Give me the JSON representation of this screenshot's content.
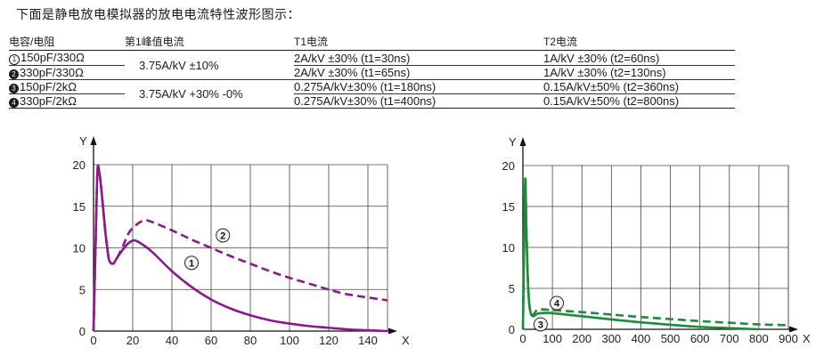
{
  "heading": "下面是静电放电模拟器的放电电流特性波形图示：",
  "table": {
    "headers": [
      "电容/电阻",
      "第1峰值电流",
      "T1电流",
      "T2电流"
    ],
    "rows": [
      {
        "badge": "1",
        "rc": "150pF/330Ω",
        "t1": "2A/kV ±30% (t1=30ns)",
        "t2": "1A/kV ±30% (t2=60ns)"
      },
      {
        "badge": "2",
        "rc": "330pF/330Ω",
        "t1": "2A/kV ±30% (t1=65ns)",
        "t2": "1A/kV ±30% (t2=130ns)"
      },
      {
        "badge": "3",
        "rc": "150pF/2kΩ",
        "t1": "0.275A/kV±30% (t1=180ns)",
        "t2": "0.15A/kV±50% (t2=360ns)"
      },
      {
        "badge": "4",
        "rc": "330pF/2kΩ",
        "t1": "0.275A/kV±30% (t1=400ns)",
        "t2": "0.15A/kV±50% (t2=800ns)"
      }
    ],
    "peak_a": "3.75A/kV ±10%",
    "peak_b": "3.75A/kV +30% -0%"
  },
  "chart_data": [
    {
      "type": "line",
      "xlabel": "X",
      "ylabel": "Y",
      "xlim": [
        0,
        150
      ],
      "ylim": [
        0,
        20
      ],
      "xticks": [
        0,
        20,
        40,
        60,
        80,
        100,
        120,
        140
      ],
      "yticks": [
        0,
        5,
        10,
        15,
        20
      ],
      "grid": true,
      "series": [
        {
          "name": "1",
          "color": "#8a1a8a",
          "dash": false,
          "label_at": [
            50,
            8.2
          ],
          "x": [
            0,
            1,
            2,
            3,
            4,
            5,
            6,
            7,
            8,
            10,
            12,
            15,
            18,
            21,
            25,
            30,
            40,
            50,
            60,
            70,
            80,
            90,
            100,
            110,
            120,
            130,
            140,
            150
          ],
          "y": [
            0,
            10,
            19.2,
            19,
            17,
            14.5,
            12,
            10,
            8.5,
            8.1,
            8.8,
            9.8,
            10.6,
            10.9,
            10.4,
            9.5,
            7.2,
            5.3,
            3.8,
            2.7,
            1.9,
            1.3,
            0.9,
            0.6,
            0.4,
            0.2,
            0.1,
            0
          ]
        },
        {
          "name": "2",
          "color": "#8a1a8a",
          "dash": true,
          "label_at": [
            66,
            11.5
          ],
          "x": [
            0,
            1,
            2,
            3,
            4,
            5,
            6,
            7,
            8,
            10,
            12,
            15,
            18,
            22,
            26,
            30,
            40,
            50,
            60,
            70,
            80,
            90,
            100,
            110,
            120,
            130,
            150
          ],
          "y": [
            0,
            10,
            19.2,
            19,
            17,
            14.5,
            12,
            10,
            8.5,
            8.1,
            8.8,
            10.2,
            11.8,
            12.8,
            13.3,
            13.1,
            12.1,
            11.0,
            10.0,
            9.0,
            8.1,
            7.2,
            6.4,
            5.7,
            5.0,
            4.4,
            3.7
          ]
        }
      ]
    },
    {
      "type": "line",
      "xlabel": "X",
      "ylabel": "Y",
      "xlim": [
        0,
        900
      ],
      "ylim": [
        0,
        20
      ],
      "xticks": [
        0,
        100,
        200,
        300,
        400,
        500,
        600,
        700,
        800,
        900
      ],
      "yticks": [
        0,
        5,
        10,
        15,
        20
      ],
      "grid": true,
      "series": [
        {
          "name": "3",
          "color": "#1e8a3c",
          "dash": false,
          "label_at": [
            60,
            0.6
          ],
          "x": [
            0,
            4,
            8,
            12,
            18,
            25,
            35,
            50,
            80,
            120,
            200,
            300,
            400,
            500,
            600,
            700,
            800
          ],
          "y": [
            0,
            10,
            18.4,
            12,
            5,
            2.2,
            1.6,
            1.9,
            2.0,
            1.9,
            1.6,
            1.2,
            0.85,
            0.55,
            0.3,
            0.15,
            0
          ]
        },
        {
          "name": "4",
          "color": "#1e8a3c",
          "dash": true,
          "label_at": [
            115,
            3.2
          ],
          "x": [
            0,
            4,
            8,
            12,
            18,
            25,
            35,
            50,
            80,
            120,
            200,
            300,
            400,
            500,
            600,
            700,
            800,
            900
          ],
          "y": [
            0,
            10,
            18.4,
            12,
            5,
            2.2,
            1.8,
            2.4,
            2.4,
            2.3,
            2.1,
            1.8,
            1.5,
            1.25,
            1.0,
            0.8,
            0.6,
            0.5
          ]
        }
      ]
    }
  ]
}
